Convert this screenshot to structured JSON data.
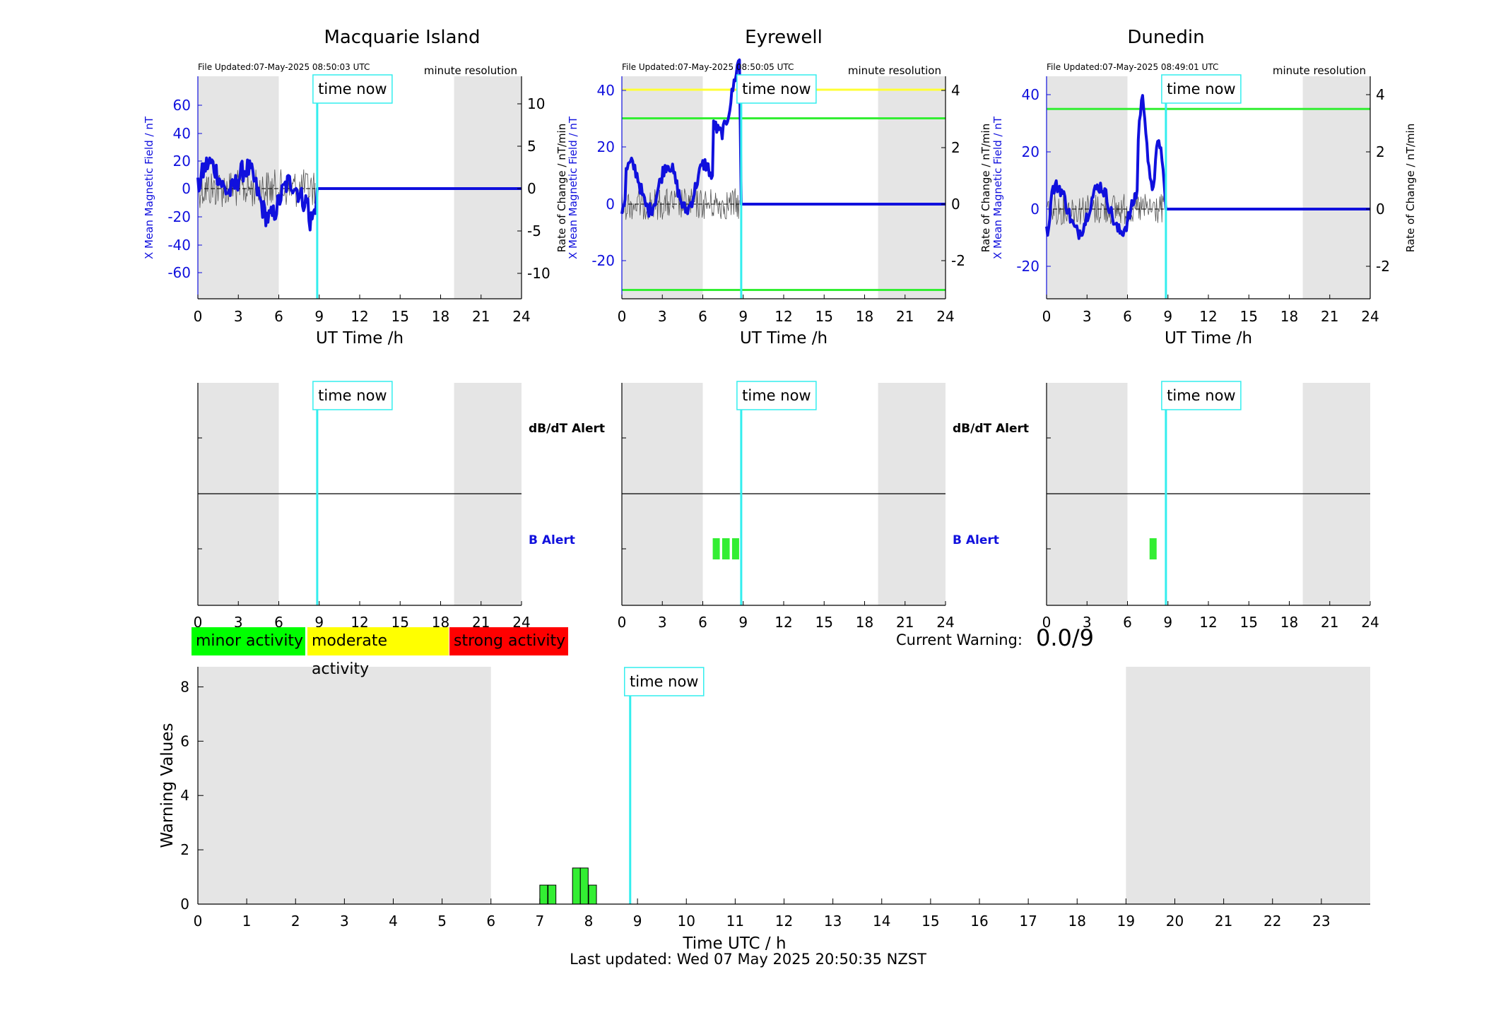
{
  "stations": [
    {
      "name": "Macquarie Island",
      "file_updated": "File Updated:07-May-2025 08:50:03 UTC",
      "resolution": "minute resolution",
      "left_ylabel": "X Mean Magnetic Field / nT",
      "right_ylabel": "Rate of Change / nT/min",
      "left_yticks": [
        "60",
        "40",
        "20",
        "0",
        "-20",
        "-40",
        "-60"
      ],
      "right_yticks": [
        "10",
        "5",
        "0",
        "-5",
        "-10"
      ],
      "threshold_lines": [],
      "b_alert_bars_hours": []
    },
    {
      "name": "Eyrewell",
      "file_updated": "File Updated:07-May-2025 08:50:05 UTC",
      "resolution": "minute resolution",
      "left_ylabel": "X Mean Magnetic Field / nT",
      "right_ylabel": "Rate of Change / nT/min",
      "left_yticks": [
        "40",
        "20",
        "0",
        "-20"
      ],
      "right_yticks": [
        "4",
        "2",
        "0",
        "-2"
      ],
      "threshold_lines": [
        {
          "color": "#ffff33",
          "value_nT": 40
        },
        {
          "color": "#33ee33",
          "value_nT": 30
        },
        {
          "color": "#33ee33",
          "value_nT": -30
        }
      ],
      "b_alert_bars_hours": [
        7.0,
        7.7
      ]
    },
    {
      "name": "Dunedin",
      "file_updated": "File Updated:07-May-2025 08:49:01 UTC",
      "resolution": "minute resolution",
      "left_ylabel": "X Mean Magnetic Field / nT",
      "right_ylabel": "Rate of Change / nT/min",
      "left_yticks": [
        "40",
        "20",
        "0",
        "-20"
      ],
      "right_yticks": [
        "4",
        "2",
        "0",
        "-2"
      ],
      "threshold_lines": [
        {
          "color": "#33ee33",
          "value_nT": 35
        }
      ],
      "b_alert_bars_hours": [
        7.9
      ]
    }
  ],
  "x_ticks_top": [
    "0",
    "3",
    "6",
    "9",
    "12",
    "15",
    "18",
    "21",
    "24"
  ],
  "top_xlabel": "UT Time /h",
  "time_now_label": "time now",
  "time_now_hour": 8.85,
  "night_shading_hours": [
    [
      0,
      6
    ],
    [
      19,
      24
    ]
  ],
  "alert_labels": {
    "dbdt": "dB/dT Alert",
    "b": "B Alert"
  },
  "legend": [
    {
      "label": "minor activity",
      "color": "#00ff00"
    },
    {
      "label": "moderate activity",
      "color": "#ffff00"
    },
    {
      "label": "strong activity",
      "color": "#ff0000"
    }
  ],
  "current_warning_label": "Current Warning:",
  "current_warning_value": "0.0/9",
  "chart_data": {
    "type": "bar",
    "title": "",
    "xlabel": "Time UTC / h",
    "ylabel": "Warning Values",
    "xlim": [
      0,
      24
    ],
    "ylim": [
      0,
      9
    ],
    "x_ticks": [
      "0",
      "1",
      "2",
      "3",
      "4",
      "5",
      "6",
      "7",
      "8",
      "9",
      "10",
      "11",
      "12",
      "13",
      "14",
      "15",
      "16",
      "17",
      "18",
      "19",
      "20",
      "21",
      "22",
      "23"
    ],
    "y_ticks": [
      "0",
      "2",
      "4",
      "6",
      "8"
    ],
    "bars": [
      {
        "x": 7.0,
        "value": 0.7
      },
      {
        "x": 7.17,
        "value": 0.7
      },
      {
        "x": 7.67,
        "value": 1.33
      },
      {
        "x": 7.83,
        "value": 1.33
      },
      {
        "x": 8.0,
        "value": 0.7
      }
    ],
    "bar_width_h": 0.16,
    "bar_color": "#33ee33",
    "grid": false
  },
  "last_updated": "Last updated: Wed 07 May 2025 20:50:35 NZST"
}
